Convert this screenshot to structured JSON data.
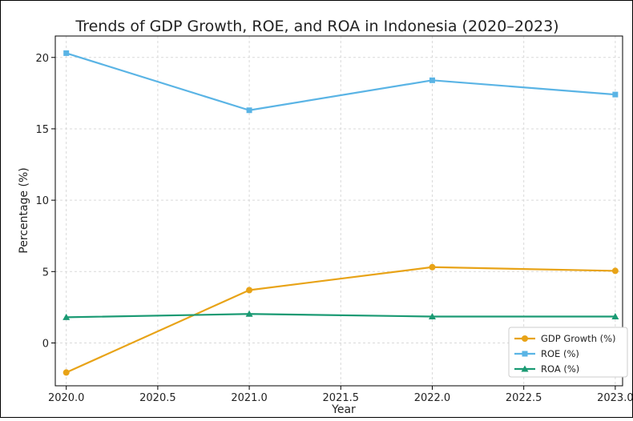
{
  "chart_data": {
    "type": "line",
    "title": "Trends of GDP Growth, ROE, and ROA in Indonesia (2020–2023)",
    "xlabel": "Year",
    "ylabel": "Percentage (%)",
    "x": [
      2020,
      2021,
      2022,
      2023
    ],
    "xlim": [
      2019.94,
      2023.04
    ],
    "ylim": [
      -3.0,
      21.5
    ],
    "x_ticks": [
      2020.0,
      2020.5,
      2021.0,
      2021.5,
      2022.0,
      2022.5,
      2023.0
    ],
    "x_tick_labels": [
      "2020.0",
      "2020.5",
      "2021.0",
      "2021.5",
      "2022.0",
      "2022.5",
      "2023.0"
    ],
    "y_ticks": [
      0,
      5,
      10,
      15,
      20
    ],
    "y_tick_labels": [
      "0",
      "5",
      "10",
      "15",
      "20"
    ],
    "grid": true,
    "legend_position": "lower-right",
    "series": [
      {
        "name": "GDP Growth (%)",
        "values": [
          -2.07,
          3.7,
          5.31,
          5.05
        ],
        "color": "#e8a317",
        "marker": "circle"
      },
      {
        "name": "ROE (%)",
        "values": [
          20.3,
          16.3,
          18.4,
          17.4
        ],
        "color": "#5ab4e5",
        "marker": "square"
      },
      {
        "name": "ROA (%)",
        "values": [
          1.8,
          2.03,
          1.85,
          1.85
        ],
        "color": "#1a9a73",
        "marker": "triangle"
      }
    ]
  }
}
